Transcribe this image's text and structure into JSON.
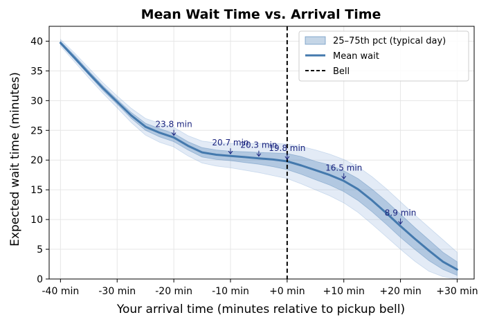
{
  "chart_data": {
    "type": "line",
    "title": "Mean Wait Time vs. Arrival Time",
    "xlabel": "Your arrival time (minutes relative to pickup bell)",
    "ylabel": "Expected wait time (minutes)",
    "xlim": [
      -42,
      33
    ],
    "ylim": [
      0,
      42.5
    ],
    "x_ticks": [
      -40,
      -30,
      -20,
      -10,
      0,
      10,
      20,
      30
    ],
    "x_tick_labels": [
      "-40 min",
      "-30 min",
      "-20 min",
      "-10 min",
      "+0 min",
      "+10 min",
      "+20 min",
      "+30 min"
    ],
    "y_ticks": [
      0,
      5,
      10,
      15,
      20,
      25,
      30,
      35,
      40
    ],
    "y_tick_labels": [
      "0",
      "5",
      "10",
      "15",
      "20",
      "25",
      "30",
      "35",
      "40"
    ],
    "grid": true,
    "legend_position": "top-right",
    "legend": [
      {
        "key": "band",
        "label": "25–75th pct (typical day)"
      },
      {
        "key": "mean",
        "label": "Mean wait"
      },
      {
        "key": "bell",
        "label": "Bell"
      }
    ],
    "colors": {
      "line": "#4479ad",
      "band_inner": "#4a7fb5",
      "band_outer": "#7fa6d4",
      "bell": "#000000",
      "annotation": "#1a237e"
    },
    "series": [
      {
        "name": "Mean wait",
        "x": [
          -40,
          -37.5,
          -35,
          -32.5,
          -30,
          -27.5,
          -25,
          -22.5,
          -20,
          -17.5,
          -15,
          -12.5,
          -10,
          -7.5,
          -5,
          -2.5,
          0,
          2.5,
          5,
          7.5,
          10,
          12.5,
          15,
          17.5,
          20,
          22.5,
          25,
          27.5,
          30
        ],
        "mean": [
          39.7,
          37.2,
          34.6,
          32.1,
          29.8,
          27.5,
          25.6,
          24.6,
          23.8,
          22.4,
          21.3,
          20.9,
          20.7,
          20.5,
          20.3,
          20.1,
          19.8,
          19.1,
          18.3,
          17.5,
          16.5,
          15.1,
          13.2,
          11.1,
          8.9,
          6.8,
          4.8,
          2.9,
          1.6
        ],
        "q25": [
          39.5,
          36.9,
          34.3,
          31.7,
          29.4,
          27.0,
          25.0,
          23.9,
          23.1,
          21.7,
          20.5,
          20.1,
          19.9,
          19.6,
          19.3,
          18.9,
          18.4,
          17.6,
          16.7,
          15.8,
          14.7,
          13.2,
          11.3,
          9.2,
          7.0,
          5.0,
          3.1,
          1.6,
          0.6
        ],
        "q75": [
          40.0,
          37.6,
          35.0,
          32.5,
          30.2,
          28.0,
          26.2,
          25.3,
          24.5,
          23.1,
          22.1,
          21.7,
          21.5,
          21.4,
          21.3,
          21.2,
          21.1,
          20.6,
          19.8,
          19.2,
          18.2,
          16.9,
          15.1,
          13.1,
          10.9,
          8.7,
          6.6,
          4.5,
          2.9
        ],
        "p10": [
          39.2,
          36.5,
          33.8,
          31.2,
          28.8,
          26.3,
          24.2,
          23.0,
          22.2,
          20.7,
          19.5,
          19.0,
          18.7,
          18.3,
          17.9,
          17.4,
          16.9,
          16.0,
          15.0,
          14.0,
          12.8,
          11.2,
          9.2,
          7.1,
          5.0,
          3.0,
          1.3,
          0.4,
          0.0
        ],
        "p90": [
          40.3,
          38.0,
          35.5,
          33.0,
          30.8,
          28.7,
          27.0,
          26.2,
          25.5,
          24.1,
          23.2,
          22.9,
          22.8,
          22.8,
          22.8,
          22.8,
          22.7,
          22.3,
          21.7,
          21.0,
          20.1,
          18.9,
          17.2,
          15.2,
          13.0,
          10.8,
          8.7,
          6.6,
          4.5
        ]
      }
    ],
    "bell_x": 0,
    "annotations": [
      {
        "x": -20,
        "y": 23.8,
        "label": "23.8 min"
      },
      {
        "x": -10,
        "y": 20.7,
        "label": "20.7 min"
      },
      {
        "x": -5,
        "y": 20.3,
        "label": "20.3 min"
      },
      {
        "x": 0,
        "y": 19.8,
        "label": "19.8 min"
      },
      {
        "x": 10,
        "y": 16.5,
        "label": "16.5 min"
      },
      {
        "x": 20,
        "y": 8.9,
        "label": "8.9 min"
      }
    ]
  }
}
